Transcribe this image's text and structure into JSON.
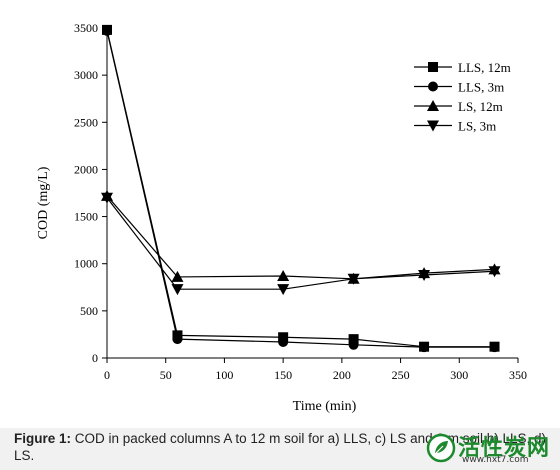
{
  "chart_data": {
    "type": "line",
    "title": "",
    "xlabel": "Time (min)",
    "ylabel": "COD (mg/L)",
    "xlim": [
      0,
      350
    ],
    "ylim": [
      0,
      3500
    ],
    "xticks": [
      0,
      50,
      100,
      150,
      200,
      250,
      300,
      350
    ],
    "yticks": [
      0,
      500,
      1000,
      1500,
      2000,
      2500,
      3000,
      3500
    ],
    "grid": false,
    "legend_position": "top-right",
    "series": [
      {
        "name": "LLS, 12m",
        "marker": "square",
        "x": [
          0,
          60,
          150,
          210,
          270,
          330
        ],
        "y": [
          3480,
          240,
          220,
          200,
          120,
          120
        ]
      },
      {
        "name": "LLS, 3m",
        "marker": "circle",
        "x": [
          0,
          60,
          150,
          210,
          270,
          330
        ],
        "y": [
          3470,
          200,
          170,
          140,
          115,
          115
        ]
      },
      {
        "name": "LS, 12m",
        "marker": "triangle-up",
        "x": [
          0,
          60,
          150,
          210,
          270,
          330
        ],
        "y": [
          1720,
          860,
          870,
          840,
          900,
          940
        ]
      },
      {
        "name": "LS, 3m",
        "marker": "triangle-down",
        "x": [
          0,
          60,
          150,
          210,
          270,
          330
        ],
        "y": [
          1700,
          730,
          730,
          840,
          880,
          920
        ]
      }
    ]
  },
  "caption": {
    "label": "Figure 1:",
    "text": " COD in packed columns A to 12 m soil for a) LLS, c) LS and 3 m soil b) LLS, d) LS."
  },
  "watermark": {
    "name": "活性炭网",
    "url": "www.hxt7.com"
  }
}
